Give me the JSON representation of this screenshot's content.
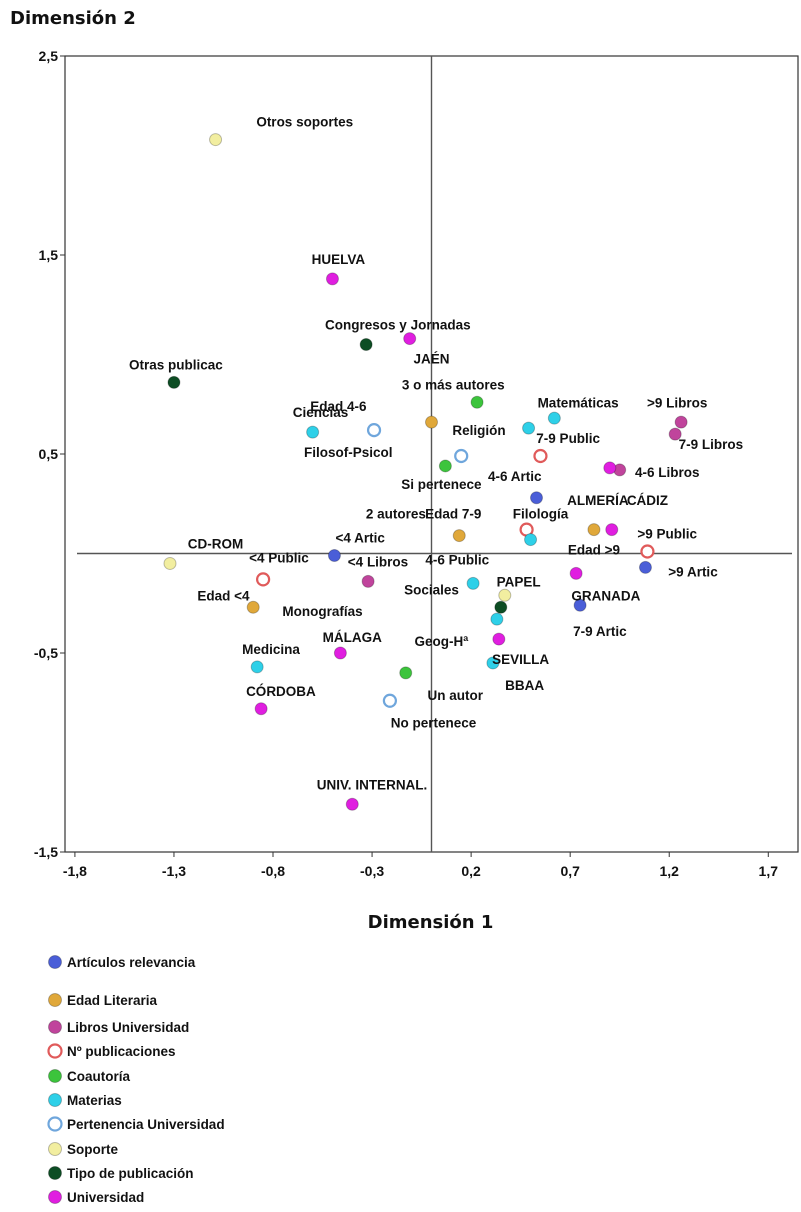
{
  "chart_data": {
    "type": "scatter",
    "xlabel": "Dimensión 1",
    "ylabel": "Dimensión 2",
    "xlim": [
      -1.85,
      1.85
    ],
    "ylim": [
      -1.5,
      2.5
    ],
    "x_ticks": [
      "-1,8",
      "-1,3",
      "-0,8",
      "-0,3",
      "0,2",
      "0,7",
      "1,2",
      "1,7"
    ],
    "x_tick_values": [
      -1.8,
      -1.3,
      -0.8,
      -0.3,
      0.2,
      0.7,
      1.2,
      1.7
    ],
    "y_ticks": [
      "2,5",
      "1,5",
      "0,5",
      "-0,5",
      "-1,5"
    ],
    "y_tick_values": [
      2.5,
      1.5,
      0.5,
      -0.5,
      -1.5
    ],
    "reference_lines": {
      "x": 0,
      "y": 0
    },
    "grid": false,
    "legend_position": "bottom-left",
    "series": [
      {
        "name": "Artículos relevancia",
        "color": "#4a5ed8",
        "marker": "filled",
        "points": [
          {
            "label": "<4 Artic",
            "x": -0.49,
            "y": -0.01
          },
          {
            "label": "4-6 Artic",
            "x": 0.53,
            "y": 0.28
          },
          {
            "label": ">9 Artic",
            "x": 1.08,
            "y": -0.07
          },
          {
            "label": "7-9 Artic",
            "x": 0.75,
            "y": -0.26
          }
        ]
      },
      {
        "name": "Edad Literaria",
        "color": "#e0a83a",
        "marker": "filled",
        "points": [
          {
            "label": "Edad 4-6",
            "x": 0.0,
            "y": 0.66
          },
          {
            "label": "Edad 7-9",
            "x": 0.14,
            "y": 0.09
          },
          {
            "label": "Edad >9",
            "x": 0.82,
            "y": 0.12
          },
          {
            "label": "Edad <4",
            "x": -0.9,
            "y": -0.27
          }
        ]
      },
      {
        "name": "Libros Universidad",
        "color": "#c0449c",
        "marker": "filled",
        "points": [
          {
            "label": ">9 Libros",
            "x": 1.26,
            "y": 0.66
          },
          {
            "label": "7-9 Libros",
            "x": 1.23,
            "y": 0.6
          },
          {
            "label": "4-6 Libros",
            "x": 0.95,
            "y": 0.42
          },
          {
            "label": "<4 Libros",
            "x": -0.32,
            "y": -0.14
          }
        ]
      },
      {
        "name": "Nº publicaciones",
        "color": "#e05a5a",
        "marker": "hollow",
        "points": [
          {
            "label": "7-9 Public",
            "x": 0.55,
            "y": 0.49
          },
          {
            "label": "4-6 Public",
            "x": 0.48,
            "y": 0.12
          },
          {
            "label": ">9 Public",
            "x": 1.09,
            "y": 0.01
          },
          {
            "label": "<4 Public",
            "x": -0.85,
            "y": -0.13
          }
        ]
      },
      {
        "name": "Coautoría",
        "color": "#3cc43c",
        "marker": "filled",
        "points": [
          {
            "label": "3 o más autores",
            "x": 0.23,
            "y": 0.76
          },
          {
            "label": "2 autores",
            "x": 0.07,
            "y": 0.44
          },
          {
            "label": "Un autor",
            "x": -0.13,
            "y": -0.6
          }
        ]
      },
      {
        "name": "Materias",
        "color": "#2ed0e8",
        "marker": "filled",
        "points": [
          {
            "label": "Matemáticas",
            "x": 0.62,
            "y": 0.68
          },
          {
            "label": "Religión",
            "x": 0.49,
            "y": 0.63
          },
          {
            "label": "Ciencias",
            "x": -0.6,
            "y": 0.61
          },
          {
            "label": "Filología",
            "x": 0.5,
            "y": 0.07
          },
          {
            "label": "Sociales",
            "x": 0.21,
            "y": -0.15
          },
          {
            "label": "Geog-Hª",
            "x": 0.33,
            "y": -0.33
          },
          {
            "label": "BBAA",
            "x": 0.31,
            "y": -0.55
          },
          {
            "label": "Medicina",
            "x": -0.88,
            "y": -0.57
          }
        ]
      },
      {
        "name": "Pertenencia Universidad",
        "color": "#6fa6dc",
        "marker": "hollow",
        "points": [
          {
            "label": "Filosof-Psicol",
            "x": -0.29,
            "y": 0.62
          },
          {
            "label": "Si pertenece",
            "x": 0.15,
            "y": 0.49
          },
          {
            "label": "No pertenece",
            "x": -0.21,
            "y": -0.74
          }
        ]
      },
      {
        "name": "Soporte",
        "color": "#f2eea0",
        "marker": "filled",
        "points": [
          {
            "label": "Otros soportes",
            "x": -1.09,
            "y": 2.08
          },
          {
            "label": "CD-ROM",
            "x": -1.32,
            "y": -0.05
          },
          {
            "label": "PAPEL",
            "x": 0.37,
            "y": -0.21
          }
        ]
      },
      {
        "name": "Tipo de publicación",
        "color": "#0d4d24",
        "marker": "filled",
        "points": [
          {
            "label": "Congresos y Jornadas",
            "x": -0.33,
            "y": 1.05
          },
          {
            "label": "Otras publicac",
            "x": -1.3,
            "y": 0.86
          },
          {
            "label": "Monografías",
            "x": 0.35,
            "y": -0.27
          }
        ]
      },
      {
        "name": "Universidad",
        "color": "#e01ee0",
        "marker": "filled",
        "points": [
          {
            "label": "HUELVA",
            "x": -0.5,
            "y": 1.38
          },
          {
            "label": "JAÉN",
            "x": -0.11,
            "y": 1.08
          },
          {
            "label": "ALMERÍA",
            "x": 0.9,
            "y": 0.43
          },
          {
            "label": "CÁDIZ",
            "x": 0.91,
            "y": 0.12
          },
          {
            "label": "GRANADA",
            "x": 0.73,
            "y": -0.1
          },
          {
            "label": "SEVILLA",
            "x": 0.34,
            "y": -0.43
          },
          {
            "label": "MÁLAGA",
            "x": -0.46,
            "y": -0.5
          },
          {
            "label": "CÓRDOBA",
            "x": -0.86,
            "y": -0.78
          },
          {
            "label": "UNIV. INTERNAL.",
            "x": -0.4,
            "y": -1.26
          }
        ]
      }
    ],
    "labels": [
      {
        "text": "Otros soportes",
        "lx": -0.64,
        "ly": 2.17
      },
      {
        "text": "HUELVA",
        "lx": -0.47,
        "ly": 1.48
      },
      {
        "text": "Congresos y Jornadas",
        "lx": -0.17,
        "ly": 1.15
      },
      {
        "text": "JAÉN",
        "lx": 0.0,
        "ly": 0.98
      },
      {
        "text": "Otras publicac",
        "lx": -1.29,
        "ly": 0.95
      },
      {
        "text": "3 o más autores",
        "lx": 0.11,
        "ly": 0.85
      },
      {
        "text": "Edad 4-6",
        "lx": -0.47,
        "ly": 0.74
      },
      {
        "text": "Matemáticas",
        "lx": 0.74,
        "ly": 0.76
      },
      {
        "text": ">9 Libros",
        "lx": 1.24,
        "ly": 0.76
      },
      {
        "text": "Ciencias",
        "lx": -0.56,
        "ly": 0.71
      },
      {
        "text": "Religión",
        "lx": 0.24,
        "ly": 0.62
      },
      {
        "text": "7-9 Public",
        "lx": 0.69,
        "ly": 0.58
      },
      {
        "text": "7-9 Libros",
        "lx": 1.41,
        "ly": 0.55
      },
      {
        "text": "Filosof-Psicol",
        "lx": -0.42,
        "ly": 0.51
      },
      {
        "text": "4-6 Libros",
        "lx": 1.19,
        "ly": 0.41
      },
      {
        "text": "4-6 Artic",
        "lx": 0.42,
        "ly": 0.39
      },
      {
        "text": "Si pertenece",
        "lx": 0.05,
        "ly": 0.35
      },
      {
        "text": "CÁDIZ",
        "lx": 1.09,
        "ly": 0.27
      },
      {
        "text": "ALMERÍA",
        "lx": 0.84,
        "ly": 0.27
      },
      {
        "text": "2 autores",
        "lx": -0.18,
        "ly": 0.2
      },
      {
        "text": "Edad 7-9",
        "lx": 0.11,
        "ly": 0.2
      },
      {
        "text": "Filología",
        "lx": 0.55,
        "ly": 0.2
      },
      {
        "text": ">9 Public",
        "lx": 1.19,
        "ly": 0.1
      },
      {
        "text": "<4 Artic",
        "lx": -0.36,
        "ly": 0.08
      },
      {
        "text": "CD-ROM",
        "lx": -1.09,
        "ly": 0.05
      },
      {
        "text": "Edad >9",
        "lx": 0.82,
        "ly": 0.02
      },
      {
        "text": "<4 Public",
        "lx": -0.77,
        "ly": -0.02
      },
      {
        "text": "<4 Libros",
        "lx": -0.27,
        "ly": -0.04
      },
      {
        "text": "4-6 Public",
        "lx": 0.13,
        "ly": -0.03
      },
      {
        "text": ">9 Artic",
        "lx": 1.32,
        "ly": -0.09
      },
      {
        "text": "PAPEL",
        "lx": 0.44,
        "ly": -0.14
      },
      {
        "text": "Sociales",
        "lx": 0.0,
        "ly": -0.18
      },
      {
        "text": "Edad <4",
        "lx": -1.05,
        "ly": -0.21
      },
      {
        "text": "GRANADA",
        "lx": 0.88,
        "ly": -0.21
      },
      {
        "text": "Monografías",
        "lx": -0.55,
        "ly": -0.29
      },
      {
        "text": "7-9 Artic",
        "lx": 0.85,
        "ly": -0.39
      },
      {
        "text": "MÁLAGA",
        "lx": -0.4,
        "ly": -0.42
      },
      {
        "text": "Geog-Hª",
        "lx": 0.05,
        "ly": -0.44
      },
      {
        "text": "Medicina",
        "lx": -0.81,
        "ly": -0.48
      },
      {
        "text": "SEVILLA",
        "lx": 0.45,
        "ly": -0.53
      },
      {
        "text": "BBAA",
        "lx": 0.47,
        "ly": -0.66
      },
      {
        "text": "CÓRDOBA",
        "lx": -0.76,
        "ly": -0.69
      },
      {
        "text": "Un autor",
        "lx": 0.12,
        "ly": -0.71
      },
      {
        "text": "No pertenece",
        "lx": 0.01,
        "ly": -0.85
      },
      {
        "text": "UNIV. INTERNAL.",
        "lx": -0.3,
        "ly": -1.16
      }
    ]
  }
}
